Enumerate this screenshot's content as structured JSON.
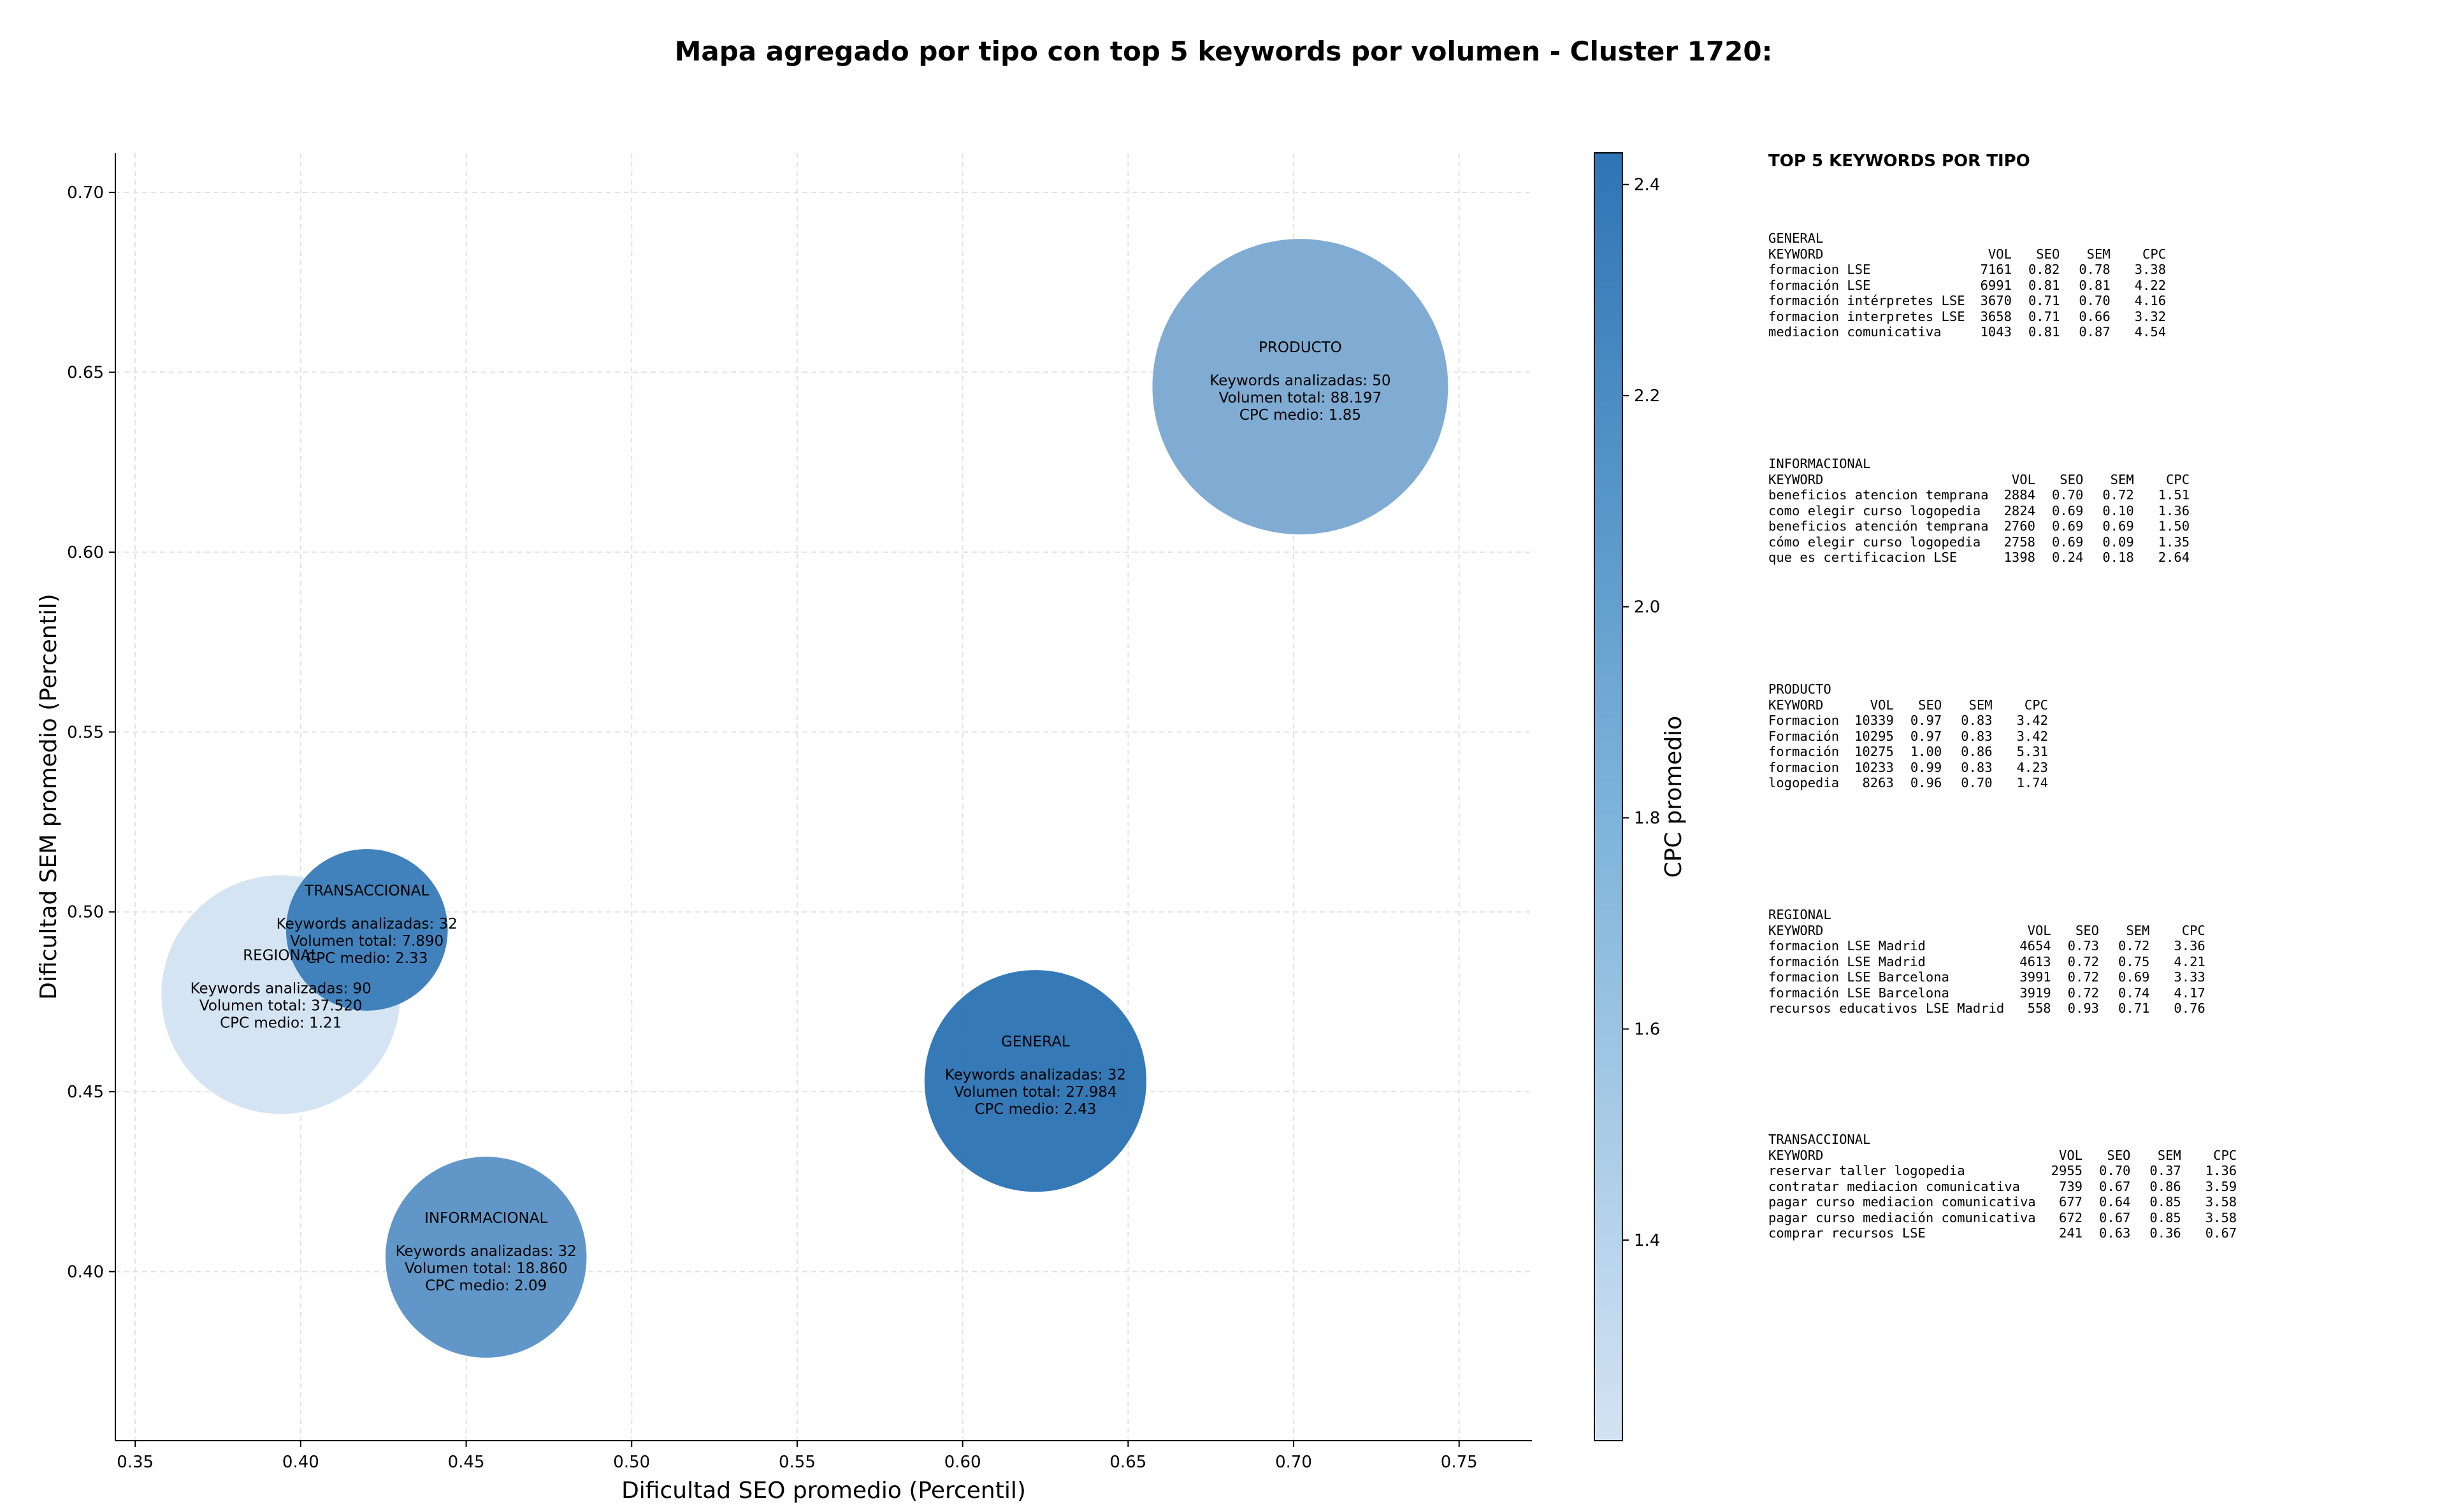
{
  "title": "Mapa agregado por tipo con top 5 keywords por volumen - Cluster 1720:",
  "chart_data": {
    "type": "scatter",
    "title": "Mapa agregado por tipo con top 5 keywords por volumen - Cluster 1720:",
    "xlabel": "Dificultad SEO promedio (Percentil)",
    "ylabel": "Dificultad SEM promedio (Percentil)",
    "xlim": [
      0.344,
      0.772
    ],
    "ylim": [
      0.353,
      0.711
    ],
    "xticks": [
      "0.35",
      "0.40",
      "0.45",
      "0.50",
      "0.55",
      "0.60",
      "0.65",
      "0.70",
      "0.75"
    ],
    "yticks": [
      "0.40",
      "0.45",
      "0.50",
      "0.55",
      "0.60",
      "0.65",
      "0.70"
    ],
    "grid": true,
    "size_encoding": "Volumen total",
    "color_encoding": "CPC promedio",
    "colorbar": {
      "label": "CPC promedio",
      "min": 1.21,
      "max": 2.43,
      "ticks": [
        "1.4",
        "1.6",
        "1.8",
        "2.0",
        "2.2",
        "2.4"
      ],
      "colors": [
        "#d3e3f3",
        "#2e75b5"
      ]
    },
    "points": [
      {
        "label": "REGIONAL",
        "seo": 0.394,
        "sem": 0.477,
        "keywords_label": "Keywords analizadas: 90",
        "volume_label": "Volumen total: 37.520",
        "cpc_label": "CPC medio: 1.21",
        "volume": 37520,
        "cpc": 1.21
      },
      {
        "label": "TRANSACCIONAL",
        "seo": 0.42,
        "sem": 0.495,
        "keywords_label": "Keywords analizadas: 32",
        "volume_label": "Volumen total: 7.890",
        "cpc_label": "CPC medio: 2.33",
        "volume": 7890,
        "cpc": 2.33
      },
      {
        "label": "PRODUCTO",
        "seo": 0.702,
        "sem": 0.646,
        "keywords_label": "Keywords analizadas: 50",
        "volume_label": "Volumen total: 88.197",
        "cpc_label": "CPC medio: 1.85",
        "volume": 88197,
        "cpc": 1.85
      },
      {
        "label": "GENERAL",
        "seo": 0.622,
        "sem": 0.453,
        "keywords_label": "Keywords analizadas: 32",
        "volume_label": "Volumen total: 27.984",
        "cpc_label": "CPC medio: 2.43",
        "volume": 27984,
        "cpc": 2.43
      },
      {
        "label": "INFORMACIONAL",
        "seo": 0.456,
        "sem": 0.404,
        "keywords_label": "Keywords analizadas: 32",
        "volume_label": "Volumen total: 18.860",
        "cpc_label": "CPC medio: 2.09",
        "volume": 18860,
        "cpc": 2.09
      }
    ]
  },
  "panel": {
    "heading": "TOP 5 KEYWORDS POR TIPO",
    "headers": {
      "keyword": "KEYWORD",
      "vol": "VOL",
      "seo": "SEO",
      "sem": "SEM",
      "cpc": "CPC"
    },
    "blocks": [
      {
        "type": "GENERAL",
        "rows": [
          {
            "keyword": "formacion LSE",
            "vol": "7161",
            "seo": "0.82",
            "sem": "0.78",
            "cpc": "3.38"
          },
          {
            "keyword": "formación LSE",
            "vol": "6991",
            "seo": "0.81",
            "sem": "0.81",
            "cpc": "4.22"
          },
          {
            "keyword": "formación intérpretes LSE",
            "vol": "3670",
            "seo": "0.71",
            "sem": "0.70",
            "cpc": "4.16"
          },
          {
            "keyword": "formacion interpretes LSE",
            "vol": "3658",
            "seo": "0.71",
            "sem": "0.66",
            "cpc": "3.32"
          },
          {
            "keyword": "mediacion comunicativa",
            "vol": "1043",
            "seo": "0.81",
            "sem": "0.87",
            "cpc": "4.54"
          }
        ]
      },
      {
        "type": "INFORMACIONAL",
        "rows": [
          {
            "keyword": "beneficios atencion temprana",
            "vol": "2884",
            "seo": "0.70",
            "sem": "0.72",
            "cpc": "1.51"
          },
          {
            "keyword": "como elegir curso logopedia",
            "vol": "2824",
            "seo": "0.69",
            "sem": "0.10",
            "cpc": "1.36"
          },
          {
            "keyword": "beneficios atención temprana",
            "vol": "2760",
            "seo": "0.69",
            "sem": "0.69",
            "cpc": "1.50"
          },
          {
            "keyword": "cómo elegir curso logopedia",
            "vol": "2758",
            "seo": "0.69",
            "sem": "0.09",
            "cpc": "1.35"
          },
          {
            "keyword": "que es certificacion LSE",
            "vol": "1398",
            "seo": "0.24",
            "sem": "0.18",
            "cpc": "2.64"
          }
        ]
      },
      {
        "type": "PRODUCTO",
        "rows": [
          {
            "keyword": "Formacion",
            "vol": "10339",
            "seo": "0.97",
            "sem": "0.83",
            "cpc": "3.42"
          },
          {
            "keyword": "Formación",
            "vol": "10295",
            "seo": "0.97",
            "sem": "0.83",
            "cpc": "3.42"
          },
          {
            "keyword": "formación",
            "vol": "10275",
            "seo": "1.00",
            "sem": "0.86",
            "cpc": "5.31"
          },
          {
            "keyword": "formacion",
            "vol": "10233",
            "seo": "0.99",
            "sem": "0.83",
            "cpc": "4.23"
          },
          {
            "keyword": "logopedia",
            "vol": "8263",
            "seo": "0.96",
            "sem": "0.70",
            "cpc": "1.74"
          }
        ]
      },
      {
        "type": "REGIONAL",
        "rows": [
          {
            "keyword": "formacion LSE Madrid",
            "vol": "4654",
            "seo": "0.73",
            "sem": "0.72",
            "cpc": "3.36"
          },
          {
            "keyword": "formación LSE Madrid",
            "vol": "4613",
            "seo": "0.72",
            "sem": "0.75",
            "cpc": "4.21"
          },
          {
            "keyword": "formacion LSE Barcelona",
            "vol": "3991",
            "seo": "0.72",
            "sem": "0.69",
            "cpc": "3.33"
          },
          {
            "keyword": "formación LSE Barcelona",
            "vol": "3919",
            "seo": "0.72",
            "sem": "0.74",
            "cpc": "4.17"
          },
          {
            "keyword": "recursos educativos LSE Madrid",
            "vol": "558",
            "seo": "0.93",
            "sem": "0.71",
            "cpc": "0.76"
          }
        ]
      },
      {
        "type": "TRANSACCIONAL",
        "rows": [
          {
            "keyword": "reservar taller logopedia",
            "vol": "2955",
            "seo": "0.70",
            "sem": "0.37",
            "cpc": "1.36"
          },
          {
            "keyword": "contratar mediacion comunicativa",
            "vol": "739",
            "seo": "0.67",
            "sem": "0.86",
            "cpc": "3.59"
          },
          {
            "keyword": "pagar curso mediacion comunicativa",
            "vol": "677",
            "seo": "0.64",
            "sem": "0.85",
            "cpc": "3.58"
          },
          {
            "keyword": "pagar curso mediación comunicativa",
            "vol": "672",
            "seo": "0.67",
            "sem": "0.85",
            "cpc": "3.58"
          },
          {
            "keyword": "comprar recursos LSE",
            "vol": "241",
            "seo": "0.63",
            "sem": "0.36",
            "cpc": "0.67"
          }
        ]
      }
    ]
  }
}
